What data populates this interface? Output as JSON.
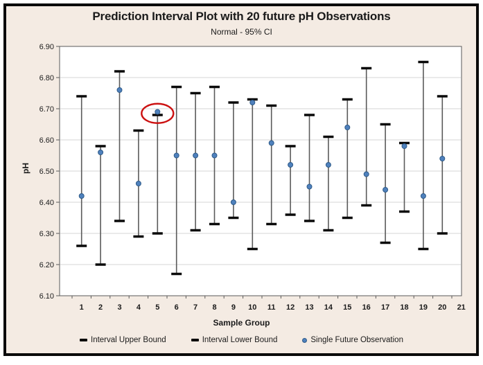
{
  "colors": {
    "background": "#f4ebe3",
    "plot_background": "#ffffff",
    "grid": "#d6d6d6",
    "axis": "#595959",
    "bar_line": "#5a5a5a",
    "cap": "#0a0a0a",
    "dot_fill": "#4f81bd",
    "dot_stroke": "#2e5a88",
    "annotation": "#cc1111",
    "text": "#1a1a1a"
  },
  "chart_data": {
    "type": "interval-plot",
    "title": "Prediction Interval Plot with 20 future pH Observations",
    "subtitle": "Normal - 95% CI",
    "xlabel": "Sample Group",
    "ylabel": "pH",
    "ylim": [
      6.1,
      6.9
    ],
    "ytick_step": 0.1,
    "ytick_labels": [
      "6.90",
      "6.80",
      "6.70",
      "6.60",
      "6.50",
      "6.40",
      "6.30",
      "6.20",
      "6.10"
    ],
    "x_axis_labels": [
      "1",
      "2",
      "3",
      "4",
      "5",
      "6",
      "7",
      "8",
      "9",
      "10",
      "11",
      "12",
      "13",
      "14",
      "15",
      "16",
      "17",
      "18",
      "19",
      "20",
      "21"
    ],
    "categories": [
      1,
      2,
      3,
      4,
      5,
      6,
      7,
      8,
      9,
      10,
      11,
      12,
      13,
      14,
      15,
      16,
      17,
      18,
      19,
      20
    ],
    "grid": true,
    "legend_position": "bottom",
    "series": [
      {
        "name": "Interval Upper Bound",
        "marker": "dash",
        "values": [
          6.74,
          6.58,
          6.82,
          6.63,
          6.68,
          6.77,
          6.75,
          6.77,
          6.72,
          6.73,
          6.71,
          6.58,
          6.68,
          6.61,
          6.73,
          6.83,
          6.65,
          6.59,
          6.85,
          6.74
        ]
      },
      {
        "name": "Interval Lower Bound",
        "marker": "dash",
        "values": [
          6.26,
          6.2,
          6.34,
          6.29,
          6.3,
          6.17,
          6.31,
          6.33,
          6.35,
          6.25,
          6.33,
          6.36,
          6.34,
          6.31,
          6.35,
          6.39,
          6.27,
          6.37,
          6.25,
          6.3
        ]
      },
      {
        "name": "Single Future Observation",
        "marker": "dot",
        "values": [
          6.42,
          6.56,
          6.76,
          6.46,
          6.69,
          6.55,
          6.55,
          6.55,
          6.4,
          6.72,
          6.59,
          6.52,
          6.45,
          6.52,
          6.64,
          6.49,
          6.44,
          6.58,
          6.42,
          6.54
        ]
      }
    ],
    "annotation": {
      "shape": "ellipse",
      "category": 5,
      "color": "#cc1111",
      "note": "observation above upper bound"
    }
  }
}
